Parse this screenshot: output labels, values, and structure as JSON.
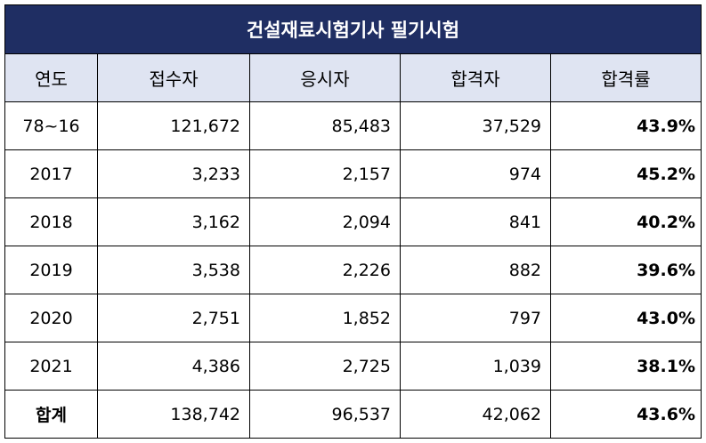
{
  "title": "건설재료시험기사 필기시험",
  "colors": {
    "header_bg": "#1f2e63",
    "subheader_bg": "#dfe4f2"
  },
  "columns": [
    "연도",
    "접수자",
    "응시자",
    "합격자",
    "합격률"
  ],
  "rows": [
    {
      "year": "78~16",
      "applicants": "121,672",
      "examinees": "85,483",
      "passed": "37,529",
      "rate": "43.9%"
    },
    {
      "year": "2017",
      "applicants": "3,233",
      "examinees": "2,157",
      "passed": "974",
      "rate": "45.2%"
    },
    {
      "year": "2018",
      "applicants": "3,162",
      "examinees": "2,094",
      "passed": "841",
      "rate": "40.2%"
    },
    {
      "year": "2019",
      "applicants": "3,538",
      "examinees": "2,226",
      "passed": "882",
      "rate": "39.6%"
    },
    {
      "year": "2020",
      "applicants": "2,751",
      "examinees": "1,852",
      "passed": "797",
      "rate": "43.0%"
    },
    {
      "year": "2021",
      "applicants": "4,386",
      "examinees": "2,725",
      "passed": "1,039",
      "rate": "38.1%"
    }
  ],
  "total": {
    "label": "합계",
    "applicants": "138,742",
    "examinees": "96,537",
    "passed": "42,062",
    "rate": "43.6%"
  }
}
